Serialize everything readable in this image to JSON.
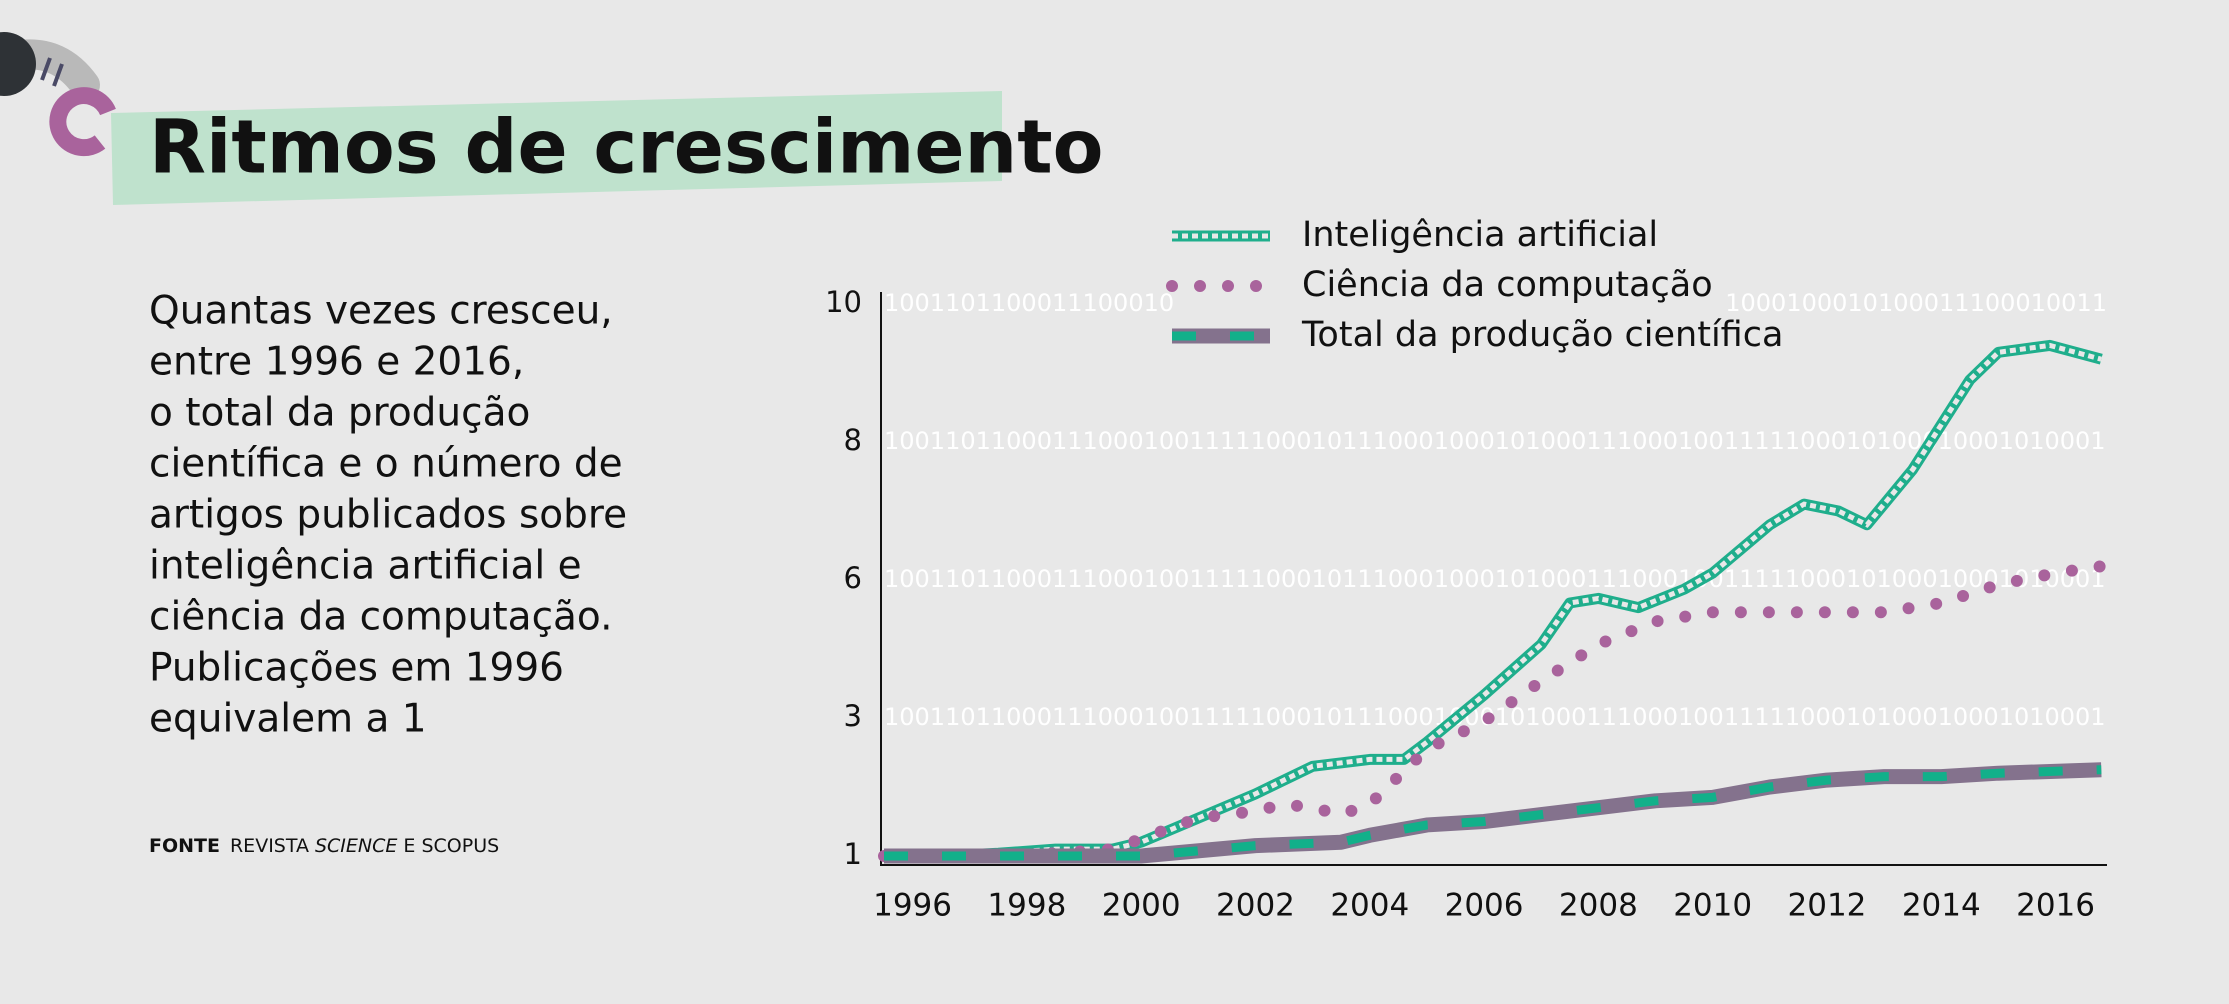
{
  "title": "Ritmos de crescimento",
  "description": [
    "Quantas vezes cresceu,",
    "entre 1996 e 2016,",
    "o total da produção",
    "científica e o número de",
    "artigos publicados sobre",
    "inteligência artificial e",
    "ciência da computação.",
    "Publicações em 1996",
    "equivalem a 1"
  ],
  "source": {
    "label": "FONTE",
    "parts": [
      "REVISTA",
      "SCIENCE",
      "E SCOPUS"
    ]
  },
  "chart_data": {
    "type": "line",
    "xlim": [
      1995.5,
      2016.9
    ],
    "xticks": [
      1996,
      1998,
      2000,
      2002,
      2004,
      2006,
      2008,
      2010,
      2012,
      2014,
      2016
    ],
    "ylim": [
      1,
      10
    ],
    "yticks": [
      1,
      3,
      6,
      8,
      10
    ],
    "background_binary": [
      "1001101100011100010",
      "1000100010100011100010011",
      "1001101100011100010011111000101110001000101000111000100111110001010001000101000111000100111100010011",
      "1001101100011100010011111000101110001000101000111000100111110001010001000101000111000100111100010011",
      "1001101100011100010011111000101110001000101000111000100111110001010001000101000111000100111100010011"
    ],
    "series": [
      {
        "name": "Inteligência artificial",
        "color": "#1fae8c",
        "x": [
          1995.5,
          1996.5,
          1997.5,
          1998.5,
          1999.5,
          2000,
          2001,
          2002,
          2003,
          2004,
          2004.6,
          2005,
          2006,
          2007,
          2007.5,
          2008,
          2008.7,
          2009.5,
          2010,
          2011,
          2011.6,
          2012.2,
          2012.7,
          2013.5,
          2014.5,
          2015,
          2015.9,
          2016.8
        ],
        "values": [
          1,
          1.0,
          1.04,
          1.1,
          1.1,
          1.2,
          1.55,
          1.9,
          2.3,
          2.4,
          2.4,
          2.65,
          3.5,
          4.6,
          5.5,
          5.6,
          5.4,
          5.8,
          6.1,
          6.8,
          7.1,
          7.0,
          6.8,
          7.6,
          8.9,
          9.3,
          9.4,
          9.2
        ]
      },
      {
        "name": "Ciência da computação",
        "color": "#a9639c",
        "x": [
          1995.5,
          1996.5,
          1997.5,
          1998.5,
          1999.5,
          2000,
          2000.5,
          2001,
          2002,
          2002.5,
          2003,
          2003.5,
          2004,
          2004.5,
          2005,
          2006,
          2007,
          2008,
          2009,
          2010,
          2011,
          2012,
          2013,
          2014,
          2015,
          2016,
          2016.8
        ],
        "values": [
          1,
          1.0,
          1.0,
          1.04,
          1.1,
          1.25,
          1.4,
          1.55,
          1.65,
          1.75,
          1.7,
          1.6,
          1.75,
          2.15,
          2.55,
          2.95,
          3.8,
          4.6,
          5.1,
          5.3,
          5.3,
          5.3,
          5.3,
          5.5,
          5.9,
          6.1,
          6.2
        ]
      },
      {
        "name": "Total da produção científica",
        "color": "#84728d",
        "x": [
          1995.5,
          1998,
          2000,
          2002,
          2003.5,
          2004,
          2005,
          2006,
          2007,
          2008,
          2009,
          2010,
          2011,
          2012,
          2013,
          2014,
          2015,
          2016.8
        ],
        "values": [
          1,
          1,
          1.0,
          1.15,
          1.2,
          1.3,
          1.45,
          1.5,
          1.6,
          1.7,
          1.8,
          1.85,
          2.0,
          2.1,
          2.15,
          2.15,
          2.2,
          2.25
        ]
      }
    ]
  }
}
